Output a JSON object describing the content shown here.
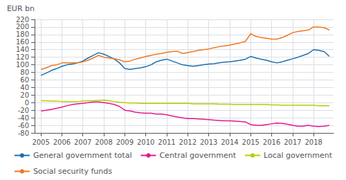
{
  "chart_data": {
    "type": "line",
    "ylabel": "EUR bn",
    "xlim": [
      2004.7,
      2018.95
    ],
    "xticks": [
      2005,
      2006,
      2007,
      2008,
      2009,
      2010,
      2011,
      2012,
      2013,
      2014,
      2015,
      2016,
      2017,
      2018
    ],
    "ylim": [
      -80,
      220
    ],
    "yticks": [
      -80,
      -60,
      -40,
      -20,
      0,
      20,
      40,
      60,
      80,
      100,
      120,
      140,
      160,
      180,
      200,
      220
    ],
    "grid": true,
    "legend": "bottom",
    "x": [
      2005.0,
      2005.25,
      2005.5,
      2005.75,
      2006.0,
      2006.25,
      2006.5,
      2006.75,
      2007.0,
      2007.25,
      2007.5,
      2007.75,
      2008.0,
      2008.25,
      2008.5,
      2008.75,
      2009.0,
      2009.25,
      2009.5,
      2009.75,
      2010.0,
      2010.25,
      2010.5,
      2010.75,
      2011.0,
      2011.25,
      2011.5,
      2011.75,
      2012.0,
      2012.25,
      2012.5,
      2012.75,
      2013.0,
      2013.25,
      2013.5,
      2013.75,
      2014.0,
      2014.25,
      2014.5,
      2014.75,
      2015.0,
      2015.25,
      2015.5,
      2015.75,
      2016.0,
      2016.25,
      2016.5,
      2016.75,
      2017.0,
      2017.25,
      2017.5,
      2017.75,
      2018.0,
      2018.25,
      2018.5,
      2018.75
    ],
    "series": [
      {
        "name": "General government total",
        "color": "#1a6faf",
        "values": [
          72,
          78,
          85,
          90,
          96,
          100,
          102,
          105,
          110,
          118,
          125,
          132,
          128,
          122,
          115,
          105,
          90,
          88,
          90,
          92,
          95,
          100,
          108,
          112,
          115,
          110,
          105,
          100,
          98,
          96,
          98,
          100,
          102,
          103,
          105,
          107,
          108,
          110,
          112,
          115,
          122,
          118,
          115,
          112,
          108,
          105,
          108,
          112,
          116,
          120,
          125,
          130,
          140,
          138,
          135,
          122
        ]
      },
      {
        "name": "Central government",
        "color": "#e8178a",
        "values": [
          -22,
          -20,
          -18,
          -15,
          -12,
          -8,
          -5,
          -3,
          -2,
          0,
          2,
          2,
          0,
          -2,
          -5,
          -10,
          -20,
          -22,
          -25,
          -27,
          -28,
          -28,
          -30,
          -30,
          -32,
          -35,
          -38,
          -40,
          -42,
          -42,
          -43,
          -44,
          -45,
          -46,
          -47,
          -48,
          -48,
          -49,
          -50,
          -51,
          -58,
          -60,
          -60,
          -58,
          -56,
          -54,
          -55,
          -57,
          -60,
          -62,
          -62,
          -60,
          -62,
          -63,
          -62,
          -60
        ]
      },
      {
        "name": "Local government",
        "color": "#b8cc00",
        "values": [
          5,
          5,
          4,
          4,
          3,
          3,
          3,
          3,
          4,
          5,
          5,
          6,
          7,
          5,
          3,
          1,
          0,
          -1,
          -1,
          -2,
          -2,
          -2,
          -2,
          -2,
          -2,
          -2,
          -2,
          -2,
          -2,
          -3,
          -3,
          -3,
          -3,
          -3,
          -4,
          -4,
          -4,
          -5,
          -5,
          -5,
          -5,
          -5,
          -5,
          -5,
          -6,
          -6,
          -7,
          -7,
          -7,
          -7,
          -7,
          -7,
          -7,
          -8,
          -8,
          -8
        ]
      },
      {
        "name": "Social security funds",
        "color": "#f07820",
        "values": [
          88,
          92,
          98,
          100,
          105,
          105,
          105,
          105,
          108,
          112,
          118,
          125,
          120,
          118,
          116,
          113,
          108,
          110,
          115,
          118,
          122,
          125,
          128,
          130,
          133,
          135,
          136,
          130,
          132,
          135,
          138,
          140,
          142,
          145,
          148,
          150,
          152,
          155,
          158,
          162,
          182,
          175,
          172,
          170,
          168,
          168,
          172,
          178,
          185,
          188,
          190,
          192,
          200,
          200,
          198,
          192
        ]
      }
    ]
  }
}
